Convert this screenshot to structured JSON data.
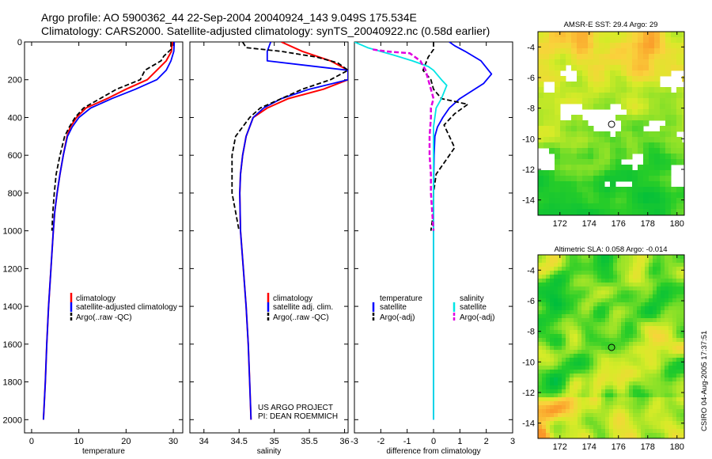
{
  "title": {
    "line1": "Argo profile: AO 5900362_44 22-Sep-2004 20040924_143 9.049S 175.534E",
    "line2": "Climatology: CARS2000. Satellite-adjusted climatology: synTS_20040922.nc (0.58d earlier)"
  },
  "credit": "CSIRO 04-Aug-2005 17:37:51",
  "project": {
    "line1": "US ARGO PROJECT",
    "line2": "PI: DEAN ROEMMICH"
  },
  "colors": {
    "climatology": "#ff0000",
    "satellite": "#0000ff",
    "argo": "#000000",
    "salinity_satellite": "#00e5e5",
    "salinity_argo": "#e000e0"
  },
  "chart_data": [
    {
      "id": "temperature",
      "type": "line",
      "xlabel": "temperature",
      "xlim": [
        -1.5,
        32
      ],
      "xticks": [
        "0",
        "10",
        "20",
        "30"
      ],
      "xtick_values": [
        0,
        10,
        20,
        30
      ],
      "ylim": [
        0,
        2070
      ],
      "yticks": [
        "0",
        "200",
        "400",
        "600",
        "800",
        "1000",
        "1200",
        "1400",
        "1600",
        "1800",
        "2000"
      ],
      "ytick_values": [
        0,
        200,
        400,
        600,
        800,
        1000,
        1200,
        1400,
        1600,
        1800,
        2000
      ],
      "legend": [
        "climatology",
        "satellite-adjusted climatology",
        "Argo(..raw -QC)"
      ],
      "series": [
        {
          "name": "climatology",
          "style": "climatology",
          "points": [
            [
              29.8,
              0
            ],
            [
              29.6,
              50
            ],
            [
              28.5,
              100
            ],
            [
              26.5,
              150
            ],
            [
              24.5,
              200
            ],
            [
              20,
              250
            ],
            [
              16,
              300
            ],
            [
              11.5,
              350
            ],
            [
              9.5,
              400
            ],
            [
              8.2,
              450
            ],
            [
              7.5,
              500
            ],
            [
              6.7,
              600
            ],
            [
              6,
              700
            ],
            [
              5.4,
              800
            ],
            [
              4.9,
              900
            ],
            [
              4.6,
              1000
            ],
            [
              4.1,
              1200
            ],
            [
              3.6,
              1400
            ],
            [
              3.2,
              1600
            ],
            [
              2.9,
              1800
            ],
            [
              2.5,
              2000
            ]
          ]
        },
        {
          "name": "satellite-adjusted climatology",
          "style": "satellite",
          "points": [
            [
              30.2,
              0
            ],
            [
              30.1,
              50
            ],
            [
              29.5,
              100
            ],
            [
              28.5,
              150
            ],
            [
              26.5,
              200
            ],
            [
              22,
              250
            ],
            [
              17,
              300
            ],
            [
              12.5,
              350
            ],
            [
              10,
              400
            ],
            [
              8.6,
              450
            ],
            [
              7.6,
              500
            ],
            [
              6.7,
              600
            ],
            [
              6,
              700
            ],
            [
              5.4,
              800
            ],
            [
              4.9,
              900
            ],
            [
              4.6,
              1000
            ],
            [
              4.1,
              1200
            ],
            [
              3.6,
              1400
            ],
            [
              3.2,
              1600
            ],
            [
              2.9,
              1800
            ],
            [
              2.5,
              2000
            ]
          ]
        },
        {
          "name": "Argo(..raw -QC)",
          "style": "argo",
          "points": [
            [
              29.5,
              0
            ],
            [
              29.5,
              40
            ],
            [
              28,
              75
            ],
            [
              27.4,
              100
            ],
            [
              24,
              150
            ],
            [
              23,
              200
            ],
            [
              18,
              250
            ],
            [
              14.5,
              300
            ],
            [
              11,
              350
            ],
            [
              9.2,
              400
            ],
            [
              8,
              450
            ],
            [
              7,
              500
            ],
            [
              6,
              600
            ],
            [
              5.2,
              700
            ],
            [
              4.8,
              800
            ],
            [
              4.5,
              900
            ],
            [
              4.3,
              1000
            ]
          ]
        }
      ]
    },
    {
      "id": "salinity",
      "type": "line",
      "xlabel": "salinity",
      "xlim": [
        33.8,
        36.05
      ],
      "xticks": [
        "34",
        "34.5",
        "35",
        "35.5",
        "36"
      ],
      "xtick_values": [
        34,
        34.5,
        35,
        35.5,
        36
      ],
      "ylim": [
        0,
        2070
      ],
      "legend": [
        "climatology",
        "satellite adj. clim.",
        "Argo(..raw -QC)"
      ],
      "series": [
        {
          "name": "climatology",
          "style": "climatology",
          "points": [
            [
              35.1,
              0
            ],
            [
              35.4,
              50
            ],
            [
              35.8,
              100
            ],
            [
              36.05,
              150
            ],
            [
              36.05,
              200
            ],
            [
              35.7,
              250
            ],
            [
              35.2,
              300
            ],
            [
              34.9,
              350
            ],
            [
              34.7,
              400
            ],
            [
              34.6,
              500
            ],
            [
              34.55,
              600
            ],
            [
              34.52,
              700
            ],
            [
              34.51,
              800
            ],
            [
              34.52,
              1000
            ],
            [
              34.56,
              1200
            ],
            [
              34.6,
              1400
            ],
            [
              34.63,
              1600
            ],
            [
              34.65,
              1800
            ],
            [
              34.67,
              2000
            ]
          ]
        },
        {
          "name": "satellite adj. clim.",
          "style": "satellite",
          "points": [
            [
              34.95,
              0
            ],
            [
              34.9,
              50
            ],
            [
              34.9,
              100
            ],
            [
              36.05,
              150
            ],
            [
              36.05,
              200
            ],
            [
              35.5,
              250
            ],
            [
              35.1,
              300
            ],
            [
              34.85,
              350
            ],
            [
              34.7,
              400
            ],
            [
              34.6,
              500
            ],
            [
              34.55,
              600
            ],
            [
              34.52,
              700
            ],
            [
              34.51,
              800
            ],
            [
              34.52,
              1000
            ],
            [
              34.56,
              1200
            ],
            [
              34.6,
              1400
            ],
            [
              34.63,
              1600
            ],
            [
              34.65,
              1800
            ],
            [
              34.67,
              2000
            ]
          ]
        },
        {
          "name": "Argo(..raw -QC)",
          "style": "argo",
          "points": [
            [
              34.55,
              0
            ],
            [
              34.6,
              30
            ],
            [
              35.1,
              50
            ],
            [
              35.6,
              80
            ],
            [
              35.9,
              110
            ],
            [
              36.05,
              150
            ],
            [
              35.8,
              200
            ],
            [
              35.4,
              250
            ],
            [
              35.1,
              300
            ],
            [
              34.8,
              350
            ],
            [
              34.65,
              400
            ],
            [
              34.55,
              450
            ],
            [
              34.45,
              500
            ],
            [
              34.4,
              600
            ],
            [
              34.4,
              800
            ],
            [
              34.45,
              900
            ],
            [
              34.5,
              1000
            ]
          ]
        }
      ]
    },
    {
      "id": "difference",
      "type": "line",
      "xlabel": "difference from climatology",
      "xlim": [
        -3,
        3
      ],
      "xticks": [
        "-3",
        "-2",
        "-1",
        "0",
        "1",
        "2",
        "3"
      ],
      "xtick_values": [
        -3,
        -2,
        -1,
        0,
        1,
        2,
        3
      ],
      "ylim": [
        0,
        2070
      ],
      "legend_temperature": {
        "heading": "temperature",
        "items": [
          "satellite",
          "Argo(-adj)"
        ]
      },
      "legend_salinity": {
        "heading": "salinity",
        "items": [
          "satellite",
          "Argo(-adj)"
        ]
      },
      "series": [
        {
          "name": "temperature satellite",
          "style": "satellite",
          "points": [
            [
              0.6,
              0
            ],
            [
              0.8,
              20
            ],
            [
              1.2,
              50
            ],
            [
              1.8,
              100
            ],
            [
              2.2,
              170
            ],
            [
              1.9,
              220
            ],
            [
              1,
              300
            ],
            [
              0.6,
              350
            ],
            [
              0.35,
              400
            ],
            [
              0.15,
              450
            ],
            [
              0.05,
              500
            ],
            [
              0.02,
              600
            ],
            [
              0,
              800
            ],
            [
              0,
              1000
            ],
            [
              0,
              1200
            ],
            [
              0,
              1400
            ],
            [
              0,
              1600
            ],
            [
              0,
              1800
            ],
            [
              0,
              2000
            ]
          ]
        },
        {
          "name": "temperature Argo(-adj)",
          "style": "argo",
          "points": [
            [
              0,
              0
            ],
            [
              0,
              40
            ],
            [
              -0.2,
              80
            ],
            [
              -0.4,
              150
            ],
            [
              -0.1,
              200
            ],
            [
              0,
              250
            ],
            [
              0.3,
              300
            ],
            [
              1.3,
              330
            ],
            [
              0.8,
              380
            ],
            [
              0.4,
              440
            ],
            [
              0.6,
              500
            ],
            [
              0.8,
              560
            ],
            [
              0.5,
              620
            ],
            [
              0.1,
              700
            ],
            [
              0,
              800
            ],
            [
              0,
              900
            ],
            [
              -0.1,
              1000
            ]
          ]
        },
        {
          "name": "salinity satellite",
          "style": "salinity_satellite",
          "points": [
            [
              -3,
              0
            ],
            [
              -2.5,
              30
            ],
            [
              -1.5,
              70
            ],
            [
              -0.8,
              100
            ],
            [
              -0.2,
              130
            ],
            [
              0,
              150
            ],
            [
              0.3,
              200
            ],
            [
              0.5,
              230
            ],
            [
              0.3,
              300
            ],
            [
              0.1,
              350
            ],
            [
              0,
              450
            ],
            [
              0,
              600
            ],
            [
              0,
              800
            ],
            [
              0,
              1000
            ],
            [
              0,
              1200
            ],
            [
              0,
              1400
            ],
            [
              0,
              1600
            ],
            [
              0,
              1800
            ],
            [
              0,
              2000
            ]
          ]
        },
        {
          "name": "salinity Argo(-adj)",
          "style": "salinity_argo",
          "points": [
            [
              -2.3,
              40
            ],
            [
              -1.8,
              50
            ],
            [
              -0.9,
              60
            ],
            [
              -0.5,
              100
            ],
            [
              -0.3,
              150
            ],
            [
              -0.2,
              200
            ],
            [
              -0.1,
              250
            ],
            [
              0,
              300
            ],
            [
              -0.1,
              350
            ],
            [
              -0.1,
              400
            ],
            [
              -0.15,
              500
            ],
            [
              -0.15,
              600
            ],
            [
              -0.1,
              700
            ],
            [
              -0.1,
              800
            ],
            [
              -0.05,
              900
            ],
            [
              0,
              1000
            ]
          ]
        }
      ]
    },
    {
      "id": "sst_map",
      "type": "heatmap",
      "title": "AMSR-E SST: 29.4 Argo: 29",
      "xlim": [
        170.5,
        180.5
      ],
      "ylim": [
        -15,
        -3
      ],
      "xticks": [
        "172",
        "174",
        "176",
        "178",
        "180"
      ],
      "xtick_values": [
        172,
        174,
        176,
        178,
        180
      ],
      "yticks": [
        "-4",
        "-6",
        "-8",
        "-10",
        "-12",
        "-14"
      ],
      "ytick_values": [
        -4,
        -6,
        -8,
        -10,
        -12,
        -14
      ],
      "argo_position": [
        175.53,
        -9.05
      ]
    },
    {
      "id": "sla_map",
      "type": "heatmap",
      "title": "Altimetric SLA: 0.058 Argo: -0.014",
      "xlim": [
        170.5,
        180.5
      ],
      "ylim": [
        -15,
        -3
      ],
      "xticks": [
        "172",
        "174",
        "176",
        "178",
        "180"
      ],
      "xtick_values": [
        172,
        174,
        176,
        178,
        180
      ],
      "yticks": [
        "-4",
        "-6",
        "-8",
        "-10",
        "-12",
        "-14"
      ],
      "ytick_values": [
        -4,
        -6,
        -8,
        -10,
        -12,
        -14
      ],
      "argo_position": [
        175.53,
        -9.05
      ]
    }
  ]
}
